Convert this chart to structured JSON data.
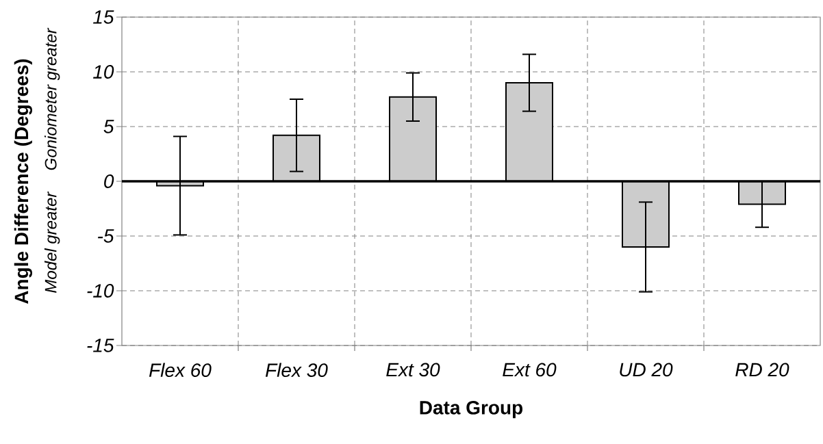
{
  "chart_data": {
    "type": "bar",
    "xlabel": "Data Group",
    "ylabel": "Angle Difference (Degrees)",
    "annotations": [
      "Goniometer greater",
      "Model greater"
    ],
    "categories": [
      "Flex 60",
      "Flex 30",
      "Ext 30",
      "Ext 60",
      "UD 20",
      "RD 20"
    ],
    "values": [
      -0.4,
      4.2,
      7.7,
      9.0,
      -6.0,
      -2.1
    ],
    "errors": [
      4.5,
      3.3,
      2.2,
      2.6,
      4.1,
      2.1
    ],
    "color": "#cccccc",
    "ylim": [
      -15,
      15
    ],
    "yticks": [
      -15,
      -10,
      -5,
      0,
      5,
      10,
      15
    ],
    "grid": true
  }
}
